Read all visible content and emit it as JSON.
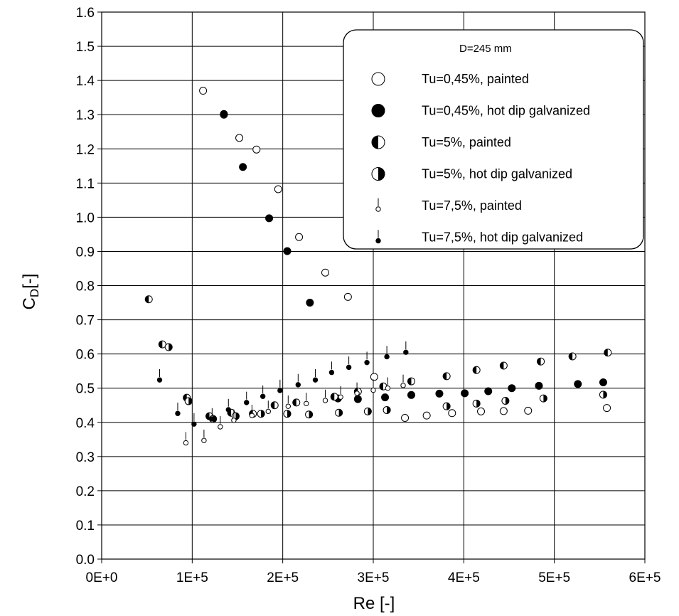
{
  "chart_data": {
    "type": "scatter",
    "xlabel": "Re [-]",
    "ylabel_main": "C",
    "ylabel_sub": "D",
    "ylabel_tail": "[-]",
    "xlim": [
      0,
      600000
    ],
    "ylim": [
      0,
      1.6
    ],
    "x_ticks": [
      0,
      100000,
      200000,
      300000,
      400000,
      500000,
      600000
    ],
    "x_tick_labels": [
      "0E+0",
      "1E+5",
      "2E+5",
      "3E+5",
      "4E+5",
      "5E+5",
      "6E+5"
    ],
    "y_ticks": [
      0,
      0.1,
      0.2,
      0.3,
      0.4,
      0.5,
      0.6,
      0.7,
      0.8,
      0.9,
      1.0,
      1.1,
      1.2,
      1.3,
      1.4,
      1.5,
      1.6
    ],
    "y_tick_labels": [
      "0.0",
      "0.1",
      "0.2",
      "0.3",
      "0.4",
      "0.5",
      "0.6",
      "0.7",
      "0.8",
      "0.9",
      "1.0",
      "1.1",
      "1.2",
      "1.3",
      "1.4",
      "1.5",
      "1.6"
    ],
    "grid": true,
    "legend": {
      "title": "D=245 mm",
      "position": "top-right"
    },
    "series": [
      {
        "name": "Tu=0,45%, painted",
        "marker": "open-circle",
        "points": [
          [
            112000,
            1.37
          ],
          [
            135000,
            1.3
          ],
          [
            152000,
            1.232
          ],
          [
            171000,
            1.198
          ],
          [
            195000,
            1.082
          ],
          [
            218000,
            0.942
          ],
          [
            247000,
            0.838
          ],
          [
            272000,
            0.767
          ],
          [
            301000,
            0.533
          ],
          [
            335000,
            0.413
          ],
          [
            359000,
            0.42
          ],
          [
            387000,
            0.427
          ],
          [
            419000,
            0.432
          ],
          [
            444000,
            0.433
          ],
          [
            471000,
            0.434
          ],
          [
            558000,
            0.442
          ]
        ]
      },
      {
        "name": "Tu=0,45%, hot dip galvanized",
        "marker": "filled-circle",
        "points": [
          [
            135000,
            1.302
          ],
          [
            156000,
            1.147
          ],
          [
            185000,
            0.997
          ],
          [
            205000,
            0.901
          ],
          [
            230000,
            0.75
          ],
          [
            261000,
            0.47
          ],
          [
            283000,
            0.468
          ],
          [
            313000,
            0.473
          ],
          [
            342000,
            0.48
          ],
          [
            373000,
            0.484
          ],
          [
            401000,
            0.485
          ],
          [
            427000,
            0.491
          ],
          [
            453000,
            0.5
          ],
          [
            483000,
            0.507
          ],
          [
            526000,
            0.512
          ],
          [
            554000,
            0.517
          ]
        ]
      },
      {
        "name": "Tu=5%, painted",
        "marker": "half-left-filled-circle",
        "points": [
          [
            52000,
            0.76
          ],
          [
            67000,
            0.628
          ],
          [
            94000,
            0.472
          ],
          [
            119000,
            0.418
          ],
          [
            143000,
            0.428
          ],
          [
            167000,
            0.425
          ],
          [
            191000,
            0.45
          ],
          [
            215000,
            0.458
          ],
          [
            257000,
            0.475
          ],
          [
            283000,
            0.49
          ],
          [
            311000,
            0.505
          ],
          [
            342000,
            0.52
          ],
          [
            381000,
            0.535
          ],
          [
            414000,
            0.553
          ],
          [
            444000,
            0.566
          ],
          [
            485000,
            0.578
          ],
          [
            520000,
            0.593
          ],
          [
            559000,
            0.604
          ]
        ]
      },
      {
        "name": "Tu=5%, hot dip galvanized",
        "marker": "half-right-filled-circle",
        "points": [
          [
            74000,
            0.62
          ],
          [
            96000,
            0.462
          ],
          [
            123000,
            0.41
          ],
          [
            148000,
            0.418
          ],
          [
            176000,
            0.425
          ],
          [
            205000,
            0.425
          ],
          [
            229000,
            0.423
          ],
          [
            262000,
            0.428
          ],
          [
            294000,
            0.432
          ],
          [
            315000,
            0.436
          ],
          [
            381000,
            0.447
          ],
          [
            414000,
            0.455
          ],
          [
            446000,
            0.463
          ],
          [
            488000,
            0.47
          ],
          [
            554000,
            0.481
          ]
        ]
      },
      {
        "name": "Tu=7,5%, painted",
        "marker": "small-open-circle-with-tick",
        "points": [
          [
            93000,
            0.34
          ],
          [
            113000,
            0.347
          ],
          [
            131000,
            0.387
          ],
          [
            146000,
            0.406
          ],
          [
            166000,
            0.42
          ],
          [
            184000,
            0.432
          ],
          [
            206000,
            0.447
          ],
          [
            226000,
            0.455
          ],
          [
            247000,
            0.464
          ],
          [
            264000,
            0.474
          ],
          [
            282000,
            0.485
          ],
          [
            300000,
            0.494
          ],
          [
            316000,
            0.5
          ],
          [
            333000,
            0.508
          ]
        ]
      },
      {
        "name": "Tu=7,5%, hot dip galvanized",
        "marker": "small-filled-circle-with-tick",
        "points": [
          [
            64000,
            0.524
          ],
          [
            84000,
            0.426
          ],
          [
            102000,
            0.395
          ],
          [
            122000,
            0.41
          ],
          [
            140000,
            0.437
          ],
          [
            160000,
            0.458
          ],
          [
            178000,
            0.476
          ],
          [
            197000,
            0.493
          ],
          [
            217000,
            0.51
          ],
          [
            236000,
            0.524
          ],
          [
            254000,
            0.546
          ],
          [
            273000,
            0.561
          ],
          [
            293000,
            0.575
          ],
          [
            315000,
            0.592
          ],
          [
            336000,
            0.605
          ]
        ]
      }
    ]
  }
}
